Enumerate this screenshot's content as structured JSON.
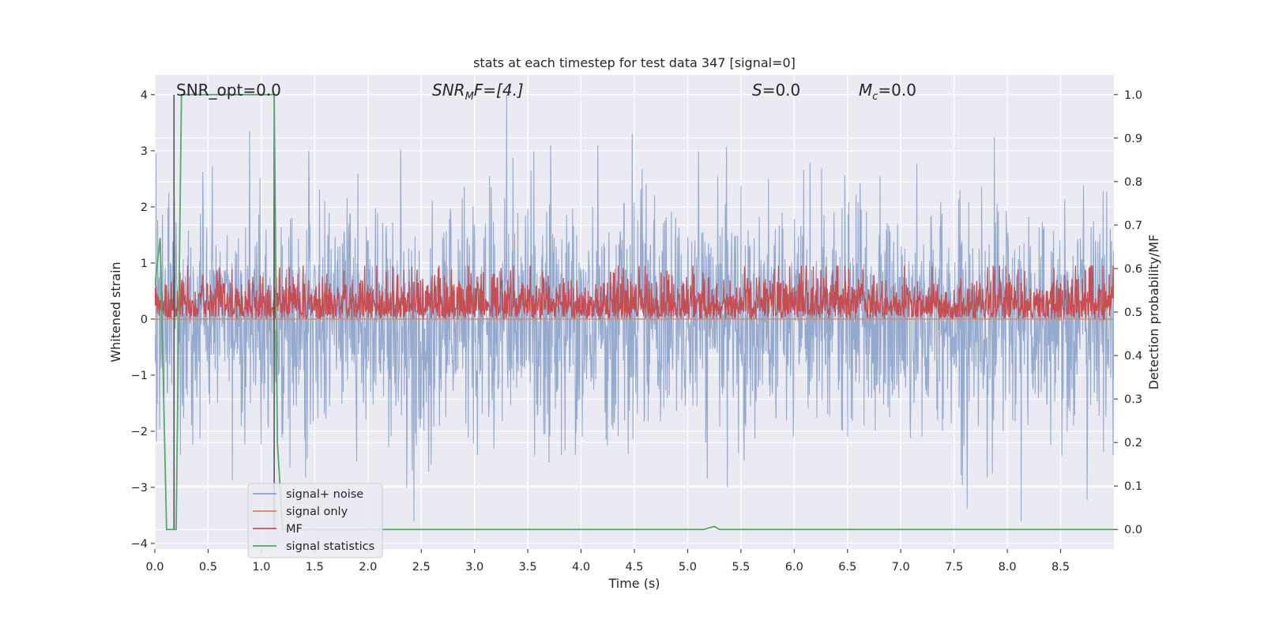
{
  "chart_data": {
    "type": "line",
    "title": "stats at each timestep for test data 347 [signal=0]",
    "xlabel": "Time (s)",
    "ylabel_left": "Whitened strain",
    "ylabel_right": "Detection probability/MF",
    "xlim": [
      0.0,
      9.0
    ],
    "ylim_left": [
      -4.1,
      4.35
    ],
    "ylim_right": [
      -0.045,
      1.045
    ],
    "x_ticks": [
      "0.0",
      "0.5",
      "1.0",
      "1.5",
      "2.0",
      "2.5",
      "3.0",
      "3.5",
      "4.0",
      "4.5",
      "5.0",
      "5.5",
      "6.0",
      "6.5",
      "7.0",
      "7.5",
      "8.0",
      "8.5"
    ],
    "y_ticks_left": [
      "4",
      "3",
      "2",
      "1",
      "0",
      "−1",
      "−2",
      "−3",
      "−4"
    ],
    "y_ticks_right": [
      "1.0",
      "0.9",
      "0.8",
      "0.7",
      "0.6",
      "0.5",
      "0.4",
      "0.3",
      "0.2",
      "0.1",
      "0.0"
    ],
    "grid": true,
    "legend_position": "lower-left",
    "annotations": {
      "snr_opt": "SNR_opt=0.0",
      "snr_mf_prefix": "SNR",
      "snr_mf_sub": "M",
      "snr_mf_suffix": "F=[4.]",
      "s_label": "S",
      "s_value": "=0.0",
      "mc_label": "M",
      "mc_sub": "c",
      "mc_value": "=0.0"
    },
    "series": [
      {
        "name": "signal+ noise",
        "color": "#4c72b0",
        "axis": "left",
        "kind": "noise",
        "sigma": 1.0,
        "notable_peaks": [
          [
            3.3,
            4.0
          ],
          [
            0.89,
            3.35
          ],
          [
            4.48,
            3.3
          ],
          [
            7.88,
            3.25
          ],
          [
            8.13,
            -3.6
          ],
          [
            2.43,
            -3.6
          ]
        ]
      },
      {
        "name": "signal only",
        "color": "#dd8452",
        "axis": "left",
        "kind": "constant",
        "value": 0.0
      },
      {
        "name": "MF",
        "color": "#c44e52",
        "axis": "left",
        "kind": "abs-noise",
        "mean": 0.3,
        "max": 0.95
      },
      {
        "name": "signal statistics",
        "color": "#55a868",
        "axis": "right",
        "x": [
          0.0,
          0.05,
          0.11,
          0.13,
          0.15,
          0.18,
          0.2,
          0.25,
          1.12,
          1.15,
          1.2,
          5.15,
          5.25,
          5.3,
          8.2,
          9.0
        ],
        "y": [
          0.56,
          0.67,
          0.0,
          0.0,
          0.0,
          0.0,
          0.0,
          1.0,
          1.0,
          0.2,
          0.0,
          0.0,
          0.007,
          0.0,
          0.0,
          0.0
        ]
      }
    ],
    "vertical_markers": [
      {
        "x": 0.18,
        "y_top": 1.0,
        "y_bottom": 0.0,
        "color": "#555555"
      },
      {
        "x": 1.12,
        "y_top": 1.0,
        "y_bottom": 0.0,
        "color": "#555555"
      }
    ]
  }
}
